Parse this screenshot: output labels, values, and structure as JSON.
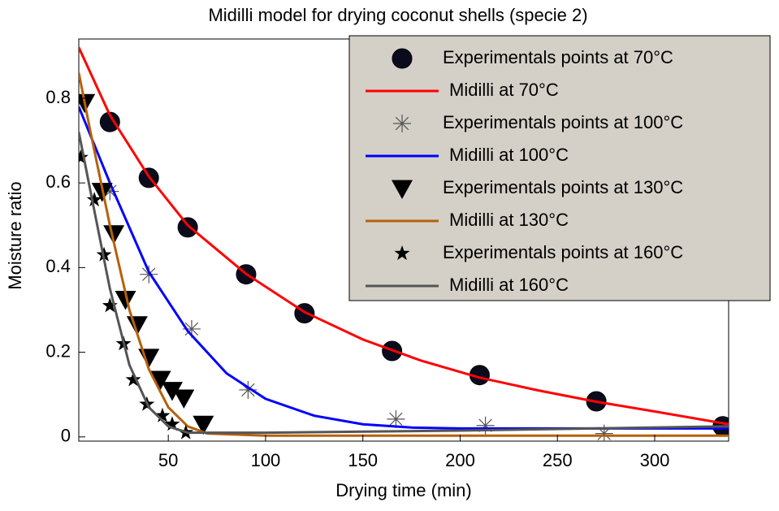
{
  "chart_data": {
    "type": "scatter",
    "title": "Midilli model for drying coconut shells (specie 2)",
    "x_label": "Drying time (min)",
    "y_label": "Moisture ratio",
    "xlim": [
      4,
      338
    ],
    "ylim": [
      -0.01,
      0.94
    ],
    "xticks": [
      50,
      100,
      150,
      200,
      250,
      300
    ],
    "yticks": [
      0,
      0.2,
      0.4,
      0.6,
      0.8
    ],
    "legend": "upper right",
    "series": [
      {
        "name": "Experimentals points at 70°C",
        "type": "scatter",
        "marker": "circle",
        "color": "#000000",
        "x": [
          20,
          40,
          60,
          90,
          120,
          165,
          210,
          270,
          335
        ],
        "values": [
          0.744,
          0.612,
          0.495,
          0.384,
          0.292,
          0.203,
          0.146,
          0.084,
          0.025
        ]
      },
      {
        "name": "Midilli at 70°C",
        "type": "line",
        "color": "#ff0000",
        "x": [
          4,
          20,
          40,
          60,
          90,
          120,
          150,
          180,
          210,
          240,
          270,
          300,
          338
        ],
        "values": [
          0.92,
          0.76,
          0.615,
          0.5,
          0.385,
          0.295,
          0.23,
          0.18,
          0.14,
          0.11,
          0.083,
          0.06,
          0.03
        ]
      },
      {
        "name": "Experimentals points at 100°C",
        "type": "scatter",
        "marker": "asterisk",
        "color": "#555555",
        "x": [
          20,
          40,
          62,
          91,
          167,
          213,
          274
        ],
        "values": [
          0.58,
          0.384,
          0.255,
          0.111,
          0.042,
          0.027,
          0.008
        ]
      },
      {
        "name": "Midilli at 100°C",
        "type": "line",
        "color": "#0000ff",
        "x": [
          4,
          20,
          40,
          60,
          80,
          100,
          125,
          150,
          175,
          200,
          250,
          338
        ],
        "values": [
          0.78,
          0.6,
          0.39,
          0.25,
          0.15,
          0.09,
          0.05,
          0.03,
          0.022,
          0.02,
          0.02,
          0.02
        ]
      },
      {
        "name": "Experimentals points at 130°C",
        "type": "scatter",
        "marker": "triangle",
        "color": "#000000",
        "x": [
          7,
          16,
          22,
          28,
          34,
          40,
          46,
          52,
          58,
          68
        ],
        "values": [
          0.79,
          0.58,
          0.48,
          0.325,
          0.265,
          0.188,
          0.136,
          0.11,
          0.092,
          0.03
        ]
      },
      {
        "name": "Midilli at 130°C",
        "type": "line",
        "color": "#b8600a",
        "x": [
          4,
          10,
          20,
          30,
          40,
          50,
          60,
          70,
          100,
          338
        ],
        "values": [
          0.86,
          0.72,
          0.5,
          0.3,
          0.16,
          0.07,
          0.025,
          0.008,
          0.003,
          0.003
        ]
      },
      {
        "name": "Experimentals points at 160°C",
        "type": "scatter",
        "marker": "star",
        "color": "#000000",
        "x": [
          5,
          12,
          17,
          20,
          27,
          32,
          39,
          47,
          52,
          59
        ],
        "values": [
          0.66,
          0.56,
          0.43,
          0.31,
          0.22,
          0.135,
          0.077,
          0.05,
          0.03,
          0.01
        ]
      },
      {
        "name": "Midilli at 160°C",
        "type": "line",
        "color": "#555555",
        "x": [
          4,
          10,
          20,
          30,
          40,
          50,
          60,
          100,
          200,
          338
        ],
        "values": [
          0.72,
          0.58,
          0.35,
          0.17,
          0.07,
          0.025,
          0.01,
          0.01,
          0.015,
          0.025
        ]
      }
    ]
  }
}
